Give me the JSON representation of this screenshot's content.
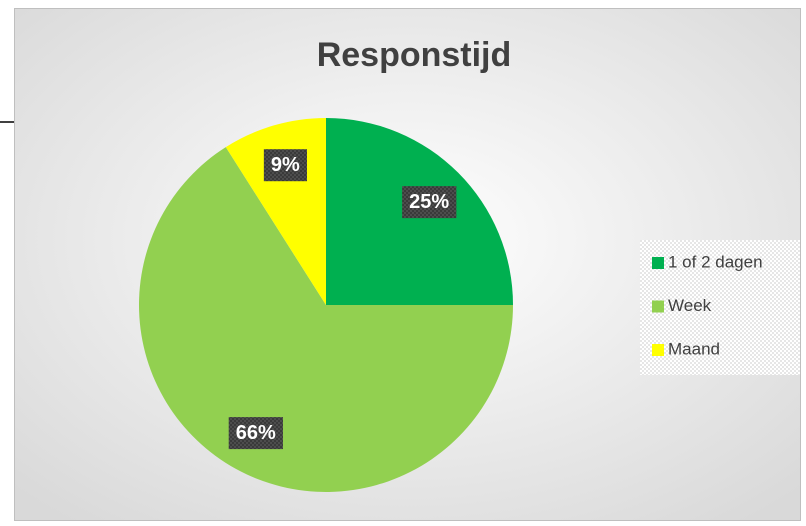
{
  "chart_data": {
    "type": "pie",
    "title": "Responstijd",
    "categories": [
      "1 of 2 dagen",
      "Week",
      "Maand"
    ],
    "values": [
      25,
      66,
      9
    ],
    "value_labels": [
      "25%",
      "66%",
      "9%"
    ],
    "colors": [
      "#00b050",
      "#92d050",
      "#ffff00"
    ],
    "legend": "right"
  }
}
